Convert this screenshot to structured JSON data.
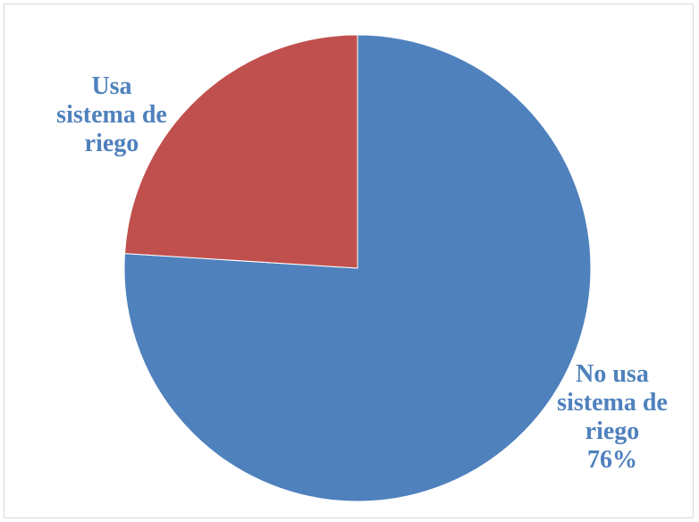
{
  "chart_data": {
    "type": "pie",
    "title": "",
    "slices": [
      {
        "label": "No usa sistema de riego",
        "value": 76,
        "value_label": "76%",
        "color": "#4f81bd"
      },
      {
        "label": "Usa sistema de riego",
        "value": 24,
        "color": "#c0504d"
      }
    ],
    "start_angle_deg": 0,
    "direction": "clockwise",
    "legend": "none",
    "label_text_color": "#4f81bd"
  },
  "labels": {
    "usa": {
      "line1": "Usa",
      "line2": "sistema de",
      "line3": "riego"
    },
    "no_usa": {
      "line1": "No usa",
      "line2": "sistema de",
      "line3": "riego",
      "pct": "76%"
    }
  }
}
